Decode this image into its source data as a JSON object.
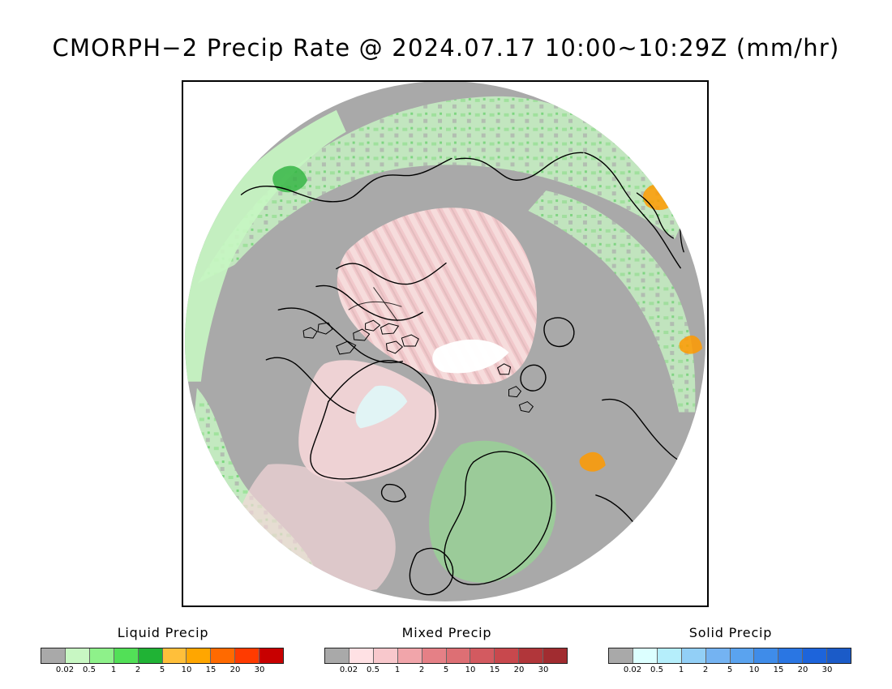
{
  "title": "CMORPH−2 Precip Rate @ 2024.07.17 10:00∼10:29Z (mm/hr)",
  "map": {
    "ocean_color": "#a9a9a9",
    "ice_color": "#f3c6c8",
    "land_outline_color": "#000000"
  },
  "legends": [
    {
      "title": "Liquid Precip",
      "colors": [
        "#a9a9a9",
        "#c8f7c3",
        "#8ef18a",
        "#52e057",
        "#20b335",
        "#ffbf3a",
        "#ffa600",
        "#ff6a00",
        "#ff3b00",
        "#c80000"
      ],
      "labels": [
        "0.02",
        "0.5",
        "1",
        "2",
        "5",
        "10",
        "15",
        "20",
        "30"
      ]
    },
    {
      "title": "Mixed Precip",
      "colors": [
        "#a9a9a9",
        "#ffe1e4",
        "#f8c8cc",
        "#f1a5aa",
        "#e58086",
        "#dd6f74",
        "#d35a60",
        "#c8484d",
        "#b1363a",
        "#a12c30"
      ],
      "labels": [
        "0.02",
        "0.5",
        "1",
        "2",
        "5",
        "10",
        "15",
        "20",
        "30"
      ]
    },
    {
      "title": "Solid Precip",
      "colors": [
        "#a9a9a9",
        "#dcffff",
        "#b5eefb",
        "#92cff6",
        "#74b3f2",
        "#5aa3ef",
        "#3f8ce9",
        "#2a76e3",
        "#1d64db",
        "#1b5bc8"
      ],
      "labels": [
        "0.02",
        "0.5",
        "1",
        "2",
        "5",
        "10",
        "15",
        "20",
        "30"
      ]
    }
  ]
}
